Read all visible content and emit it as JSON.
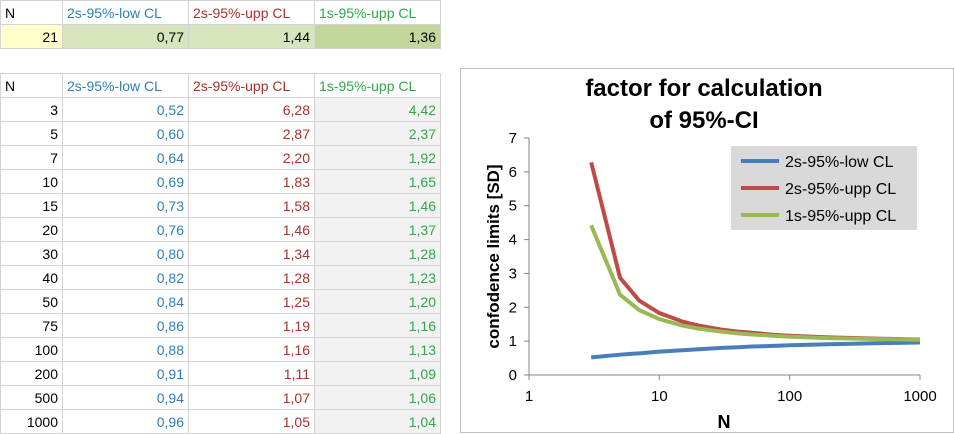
{
  "table_top": {
    "header": [
      "N",
      "2s-95%-low CL",
      "2s-95%-upp CL",
      "1s-95%-upp CL"
    ],
    "rows": [
      [
        "21",
        "0,77",
        "1,44",
        "1,36"
      ]
    ]
  },
  "table_main": {
    "header": [
      "N",
      "2s-95%-low CL",
      "2s-95%-upp CL",
      "1s-95%-upp CL"
    ],
    "rows": [
      [
        "3",
        "0,52",
        "6,28",
        "4,42"
      ],
      [
        "5",
        "0,60",
        "2,87",
        "2,37"
      ],
      [
        "7",
        "0,64",
        "2,20",
        "1,92"
      ],
      [
        "10",
        "0,69",
        "1,83",
        "1,65"
      ],
      [
        "15",
        "0,73",
        "1,58",
        "1,46"
      ],
      [
        "20",
        "0,76",
        "1,46",
        "1,37"
      ],
      [
        "30",
        "0,80",
        "1,34",
        "1,28"
      ],
      [
        "40",
        "0,82",
        "1,28",
        "1,23"
      ],
      [
        "50",
        "0,84",
        "1,25",
        "1,20"
      ],
      [
        "75",
        "0,86",
        "1,19",
        "1,16"
      ],
      [
        "100",
        "0,88",
        "1,16",
        "1,13"
      ],
      [
        "200",
        "0,91",
        "1,11",
        "1,09"
      ],
      [
        "500",
        "0,94",
        "1,07",
        "1,06"
      ],
      [
        "1000",
        "0,96",
        "1,05",
        "1,04"
      ]
    ]
  },
  "chart_data": {
    "type": "line",
    "title": "factor for calculation of 95%-CI",
    "x_label": "N",
    "y_label": "confodence limits [SD]",
    "x": [
      3,
      5,
      7,
      10,
      15,
      20,
      30,
      40,
      50,
      75,
      100,
      200,
      500,
      1000
    ],
    "series": [
      {
        "name": "2s-95%-low CL",
        "color": "#4a7ebb",
        "values": [
          0.52,
          0.6,
          0.64,
          0.69,
          0.73,
          0.76,
          0.8,
          0.82,
          0.84,
          0.86,
          0.88,
          0.91,
          0.94,
          0.96
        ]
      },
      {
        "name": "2s-95%-upp CL",
        "color": "#be4b48",
        "values": [
          6.28,
          2.87,
          2.2,
          1.83,
          1.58,
          1.46,
          1.34,
          1.28,
          1.25,
          1.19,
          1.16,
          1.11,
          1.07,
          1.05
        ]
      },
      {
        "name": "1s-95%-upp CL",
        "color": "#98b954",
        "values": [
          4.42,
          2.37,
          1.92,
          1.65,
          1.46,
          1.37,
          1.28,
          1.23,
          1.2,
          1.16,
          1.13,
          1.09,
          1.06,
          1.04
        ]
      }
    ],
    "xlim": [
      1,
      1000
    ],
    "xticks": [
      1,
      10,
      100,
      1000
    ],
    "x_log": true,
    "ylim": [
      0,
      7
    ],
    "yticks": [
      0,
      1,
      2,
      3,
      4,
      5,
      6,
      7
    ],
    "legend": "top-right"
  }
}
